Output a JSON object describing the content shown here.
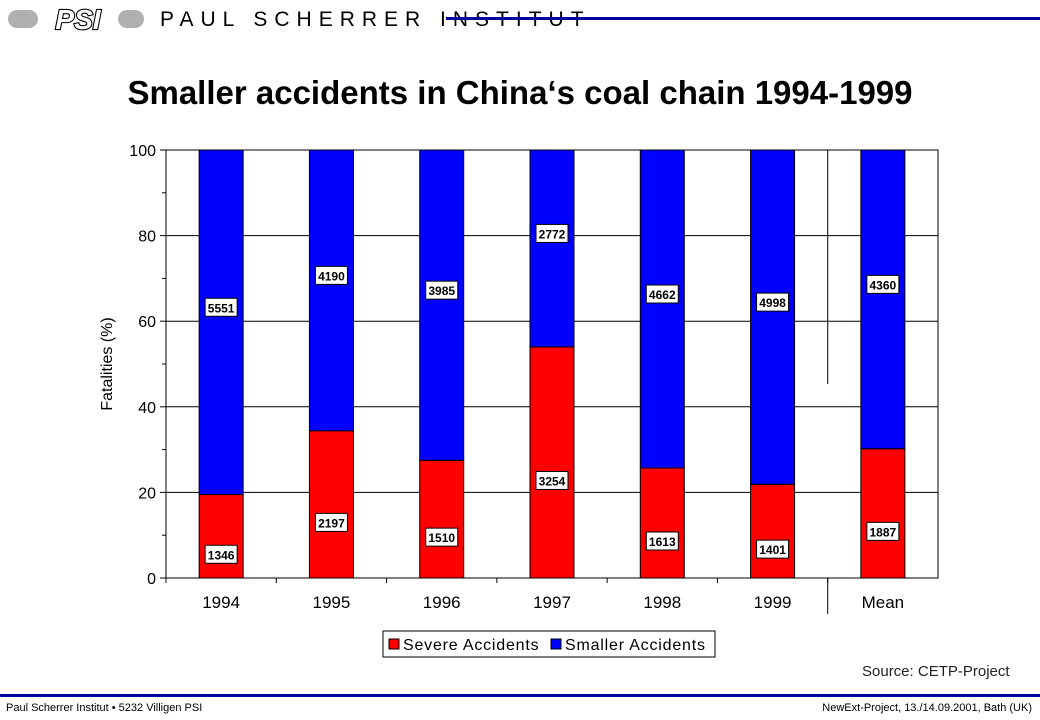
{
  "header": {
    "logo_text": "PSI",
    "org_name": "PAUL SCHERRER INSTITUT"
  },
  "colors": {
    "severe": "#ff0000",
    "smaller": "#0000ff",
    "brand_line": "#0000a0"
  },
  "chart_data": {
    "type": "bar",
    "stacked": true,
    "title": "Smaller accidents in China‘s coal chain 1994-1999",
    "xlabel": "",
    "ylabel": "Fatalities (%)",
    "ylim": [
      0,
      100
    ],
    "yticks": [
      0,
      20,
      40,
      60,
      80,
      100
    ],
    "grid": true,
    "legend_position": "bottom",
    "categories": [
      "1994",
      "1995",
      "1996",
      "1997",
      "1998",
      "1999",
      "Mean"
    ],
    "series": [
      {
        "name": "Severe Accidents",
        "color": "#ff0000",
        "values": [
          19.5,
          34.4,
          27.5,
          54.0,
          25.7,
          21.9,
          30.2
        ],
        "labels": [
          "1346",
          "2197",
          "1510",
          "3254",
          "1613",
          "1401",
          "1887"
        ]
      },
      {
        "name": "Smaller Accidents",
        "color": "#0000ff",
        "values": [
          80.5,
          65.6,
          72.5,
          46.0,
          74.3,
          78.1,
          69.8
        ],
        "labels": [
          "5551",
          "4190",
          "3985",
          "2772",
          "4662",
          "4998",
          "4360"
        ]
      }
    ]
  },
  "source": "Source: CETP-Project",
  "footer": {
    "left": "Paul Scherrer Institut • 5232 Villigen PSI",
    "right": "NewExt-Project, 13./14.09.2001, Bath (UK)"
  }
}
